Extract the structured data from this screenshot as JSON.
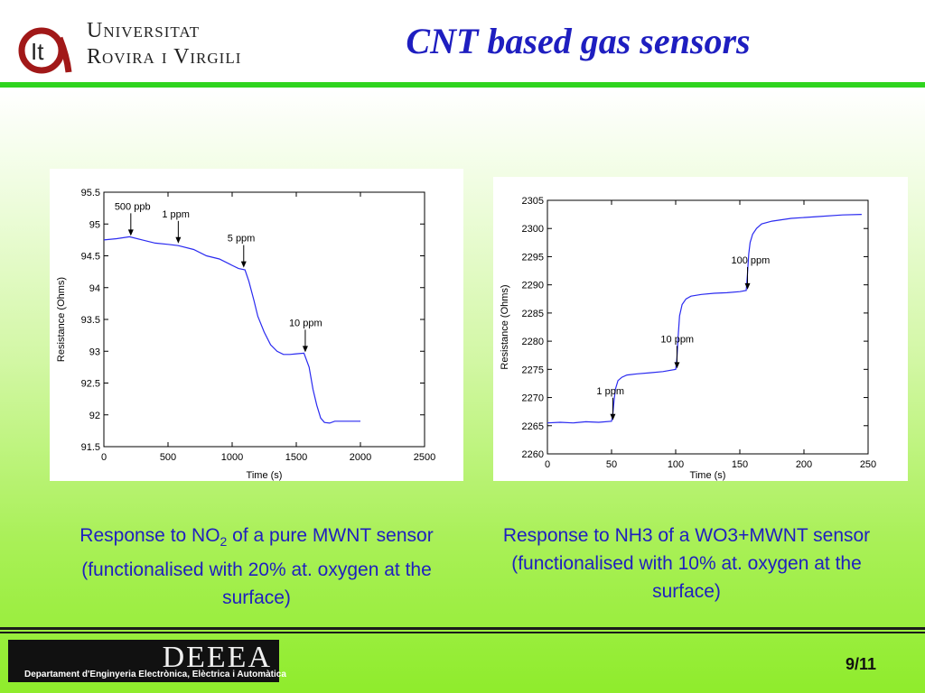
{
  "header": {
    "university_line1": "Universitat",
    "university_line2": "Rovira i Virgili",
    "title": "CNT based gas sensors"
  },
  "captions": {
    "left_pre": "Response to NO",
    "left_sub": "2",
    "left_post": " of a pure MWNT sensor (functionalised with 20% at. oxygen at the surface)",
    "right": "Response to NH3 of a WO3+MWNT sensor (functionalised with 10% at. oxygen at the surface)"
  },
  "footer": {
    "logo_text": "DEEEA",
    "department": "Departament d'Enginyeria Electrònica, Elèctrica i Automàtica",
    "page": "9/11"
  },
  "colors": {
    "title": "#1e1ec0",
    "caption": "#1f1fbf",
    "rule": "#2fd41e",
    "series": "#2a2af0"
  },
  "chart_data": [
    {
      "type": "line",
      "xlabel": "Time (s)",
      "ylabel": "Resistance (Ohms)",
      "xlim": [
        0,
        2500
      ],
      "ylim": [
        91.5,
        95.5
      ],
      "xticks": [
        0,
        500,
        1000,
        1500,
        2000,
        2500
      ],
      "yticks": [
        91.5,
        92,
        92.5,
        93,
        93.5,
        94,
        94.5,
        95,
        95.5
      ],
      "grid": false,
      "series": [
        {
          "x": [
            0,
            100,
            200,
            300,
            400,
            500,
            580,
            700,
            800,
            900,
            1000,
            1050,
            1100,
            1130,
            1170,
            1200,
            1250,
            1300,
            1350,
            1400,
            1450,
            1500,
            1560,
            1600,
            1630,
            1660,
            1690,
            1720,
            1760,
            1800,
            1900,
            2000
          ],
          "y": [
            94.75,
            94.77,
            94.8,
            94.75,
            94.7,
            94.68,
            94.66,
            94.6,
            94.5,
            94.45,
            94.35,
            94.3,
            94.28,
            94.1,
            93.8,
            93.55,
            93.3,
            93.1,
            93.0,
            92.95,
            92.95,
            92.96,
            92.97,
            92.75,
            92.4,
            92.15,
            91.95,
            91.88,
            91.87,
            91.9,
            91.9,
            91.9
          ]
        }
      ],
      "annotations": [
        {
          "text": "500 ppb",
          "x": 210,
          "y": 94.8
        },
        {
          "text": "1 ppm",
          "x": 580,
          "y": 94.68
        },
        {
          "text": "5 ppm",
          "x": 1090,
          "y": 94.3
        },
        {
          "text": "10 ppm",
          "x": 1570,
          "y": 92.97
        }
      ]
    },
    {
      "type": "line",
      "xlabel": "Time (s)",
      "ylabel": "Resistance (Ohms)",
      "xlim": [
        0,
        250
      ],
      "ylim": [
        2260,
        2305
      ],
      "xticks": [
        0,
        50,
        100,
        150,
        200,
        250
      ],
      "yticks": [
        2260,
        2265,
        2270,
        2275,
        2280,
        2285,
        2290,
        2295,
        2300,
        2305
      ],
      "grid": false,
      "series": [
        {
          "x": [
            0,
            10,
            20,
            30,
            40,
            50,
            51,
            52,
            53,
            55,
            58,
            62,
            70,
            80,
            90,
            100,
            101,
            102,
            103,
            105,
            108,
            112,
            120,
            130,
            140,
            150,
            155,
            156,
            157,
            158,
            160,
            163,
            167,
            175,
            190,
            210,
            230,
            245
          ],
          "y": [
            2265.5,
            2265.6,
            2265.5,
            2265.7,
            2265.6,
            2265.8,
            2267,
            2269.5,
            2271.5,
            2273,
            2273.6,
            2274,
            2274.2,
            2274.4,
            2274.6,
            2275,
            2277,
            2281,
            2284.5,
            2286.5,
            2287.5,
            2288,
            2288.3,
            2288.5,
            2288.6,
            2288.8,
            2289,
            2292,
            2295.5,
            2297.5,
            2299,
            2300,
            2300.8,
            2301.3,
            2301.8,
            2302.1,
            2302.4,
            2302.5
          ]
        }
      ],
      "annotations": [
        {
          "text": "1 ppm",
          "x": 51,
          "y": 2265.8
        },
        {
          "text": "10 ppm",
          "x": 101,
          "y": 2275
        },
        {
          "text": "100 ppm",
          "x": 156,
          "y": 2289
        }
      ]
    }
  ]
}
